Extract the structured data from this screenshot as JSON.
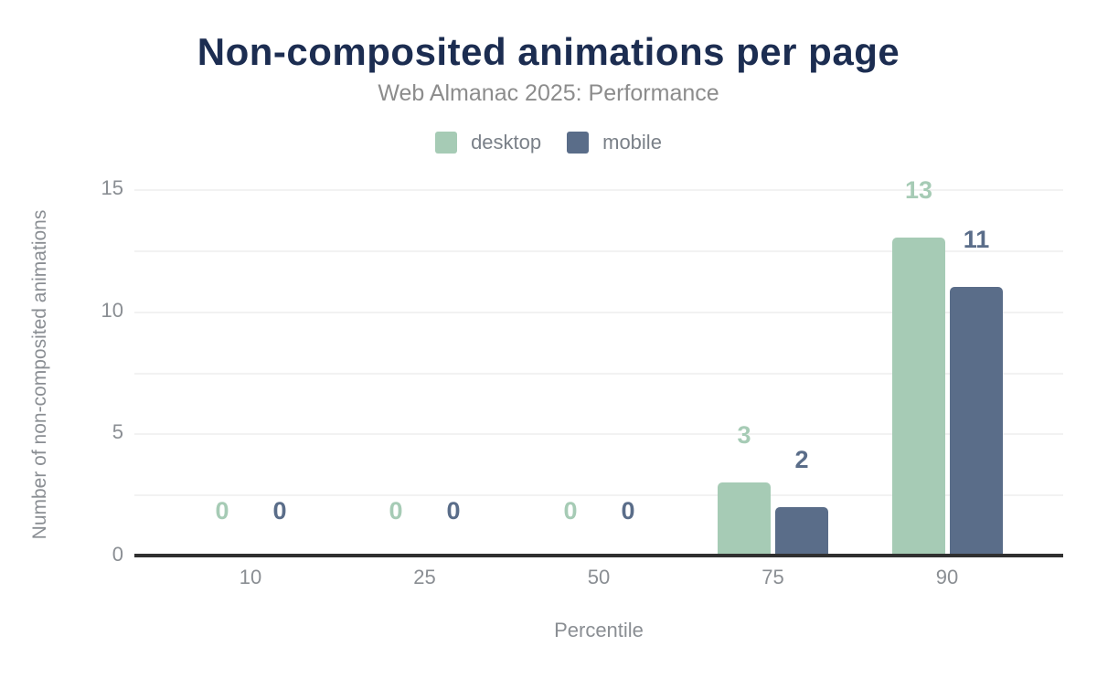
{
  "colors": {
    "background": "#ffffff",
    "title_text": "#1c2d51",
    "subtitle_text": "#8c8c8c",
    "legend_text": "#7a8088",
    "axis_text": "#8a8e93",
    "gridline": "#f2f2f2",
    "axis_line": "#303030",
    "desktop": "#a6cbb5",
    "mobile": "#5a6d89"
  },
  "chart_data": {
    "type": "bar",
    "title": "Non-composited animations per page",
    "subtitle": "Web Almanac 2025: Performance",
    "categories": [
      "10",
      "25",
      "50",
      "75",
      "90"
    ],
    "series": [
      {
        "name": "desktop",
        "color": "#a6cbb5",
        "values": [
          0,
          0,
          0,
          3,
          13
        ]
      },
      {
        "name": "mobile",
        "color": "#5a6d89",
        "values": [
          0,
          0,
          0,
          2,
          11
        ]
      }
    ],
    "xlabel": "Percentile",
    "ylabel": "Number of non-composited animations",
    "ylim": [
      0,
      15
    ],
    "yticks": [
      0,
      5,
      10,
      15
    ],
    "grid_step": 2.5,
    "legend_position": "top",
    "value_labels": true
  }
}
